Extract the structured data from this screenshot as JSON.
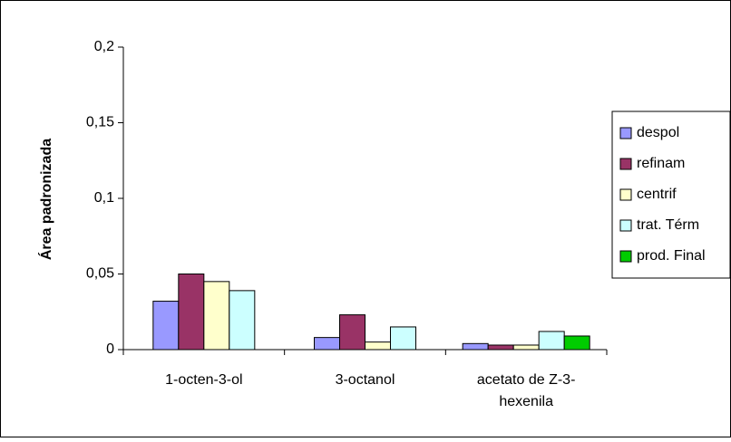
{
  "chart_data": {
    "type": "bar",
    "title": "",
    "xlabel": "",
    "ylabel": "Área padronizada",
    "ylim": [
      0,
      0.2
    ],
    "yticks": [
      {
        "value": 0,
        "label": "0"
      },
      {
        "value": 0.05,
        "label": "0,05"
      },
      {
        "value": 0.1,
        "label": "0,1"
      },
      {
        "value": 0.15,
        "label": "0,15"
      },
      {
        "value": 0.2,
        "label": "0,2"
      }
    ],
    "grid": false,
    "legend_position": "right",
    "categories": [
      {
        "lines": [
          "1-octen-3-ol"
        ]
      },
      {
        "lines": [
          "3-octanol"
        ]
      },
      {
        "lines": [
          "acetato de Z-3-",
          "hexenila"
        ]
      }
    ],
    "series": [
      {
        "name": "despol",
        "color": "#9999ff",
        "values": [
          0.032,
          0.008,
          0.004
        ]
      },
      {
        "name": "refinam",
        "color": "#993366",
        "values": [
          0.05,
          0.023,
          0.003
        ]
      },
      {
        "name": "centrif",
        "color": "#ffffcc",
        "values": [
          0.045,
          0.005,
          0.003
        ]
      },
      {
        "name": "trat. Térm",
        "color": "#ccffff",
        "values": [
          0.039,
          0.015,
          0.012
        ]
      },
      {
        "name": "prod. Final",
        "color": "#00cc00",
        "values": [
          null,
          null,
          0.009
        ]
      }
    ]
  }
}
